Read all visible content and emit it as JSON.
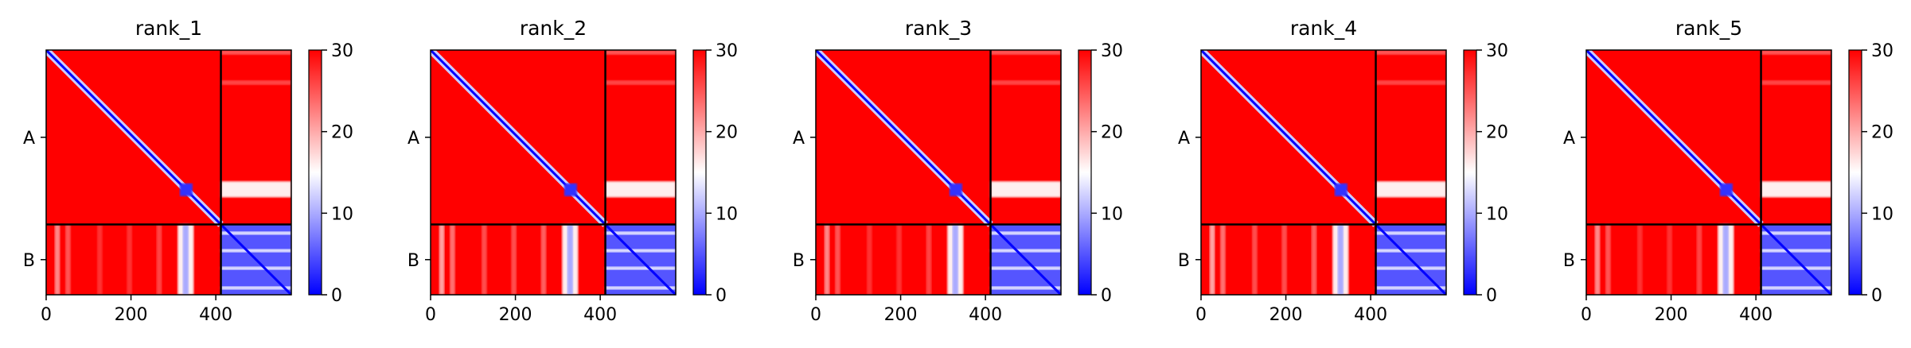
{
  "chart_data": {
    "type": "heatmap",
    "colormap": [
      "#0000ff",
      "#ffffff",
      "#ff0000"
    ],
    "color_range": [
      0,
      30
    ],
    "colorbar_ticks": [
      0,
      10,
      20,
      30
    ],
    "x_ticks": [
      0,
      200,
      400
    ],
    "xlim": [
      0,
      578
    ],
    "total_residues": 578,
    "chains": [
      {
        "label": "A",
        "start": 0,
        "end": 412
      },
      {
        "label": "B",
        "start": 412,
        "end": 578
      }
    ],
    "panels": [
      {
        "title": "rank_1"
      },
      {
        "title": "rank_2"
      },
      {
        "title": "rank_3"
      },
      {
        "title": "rank_4"
      },
      {
        "title": "rank_5"
      }
    ]
  }
}
